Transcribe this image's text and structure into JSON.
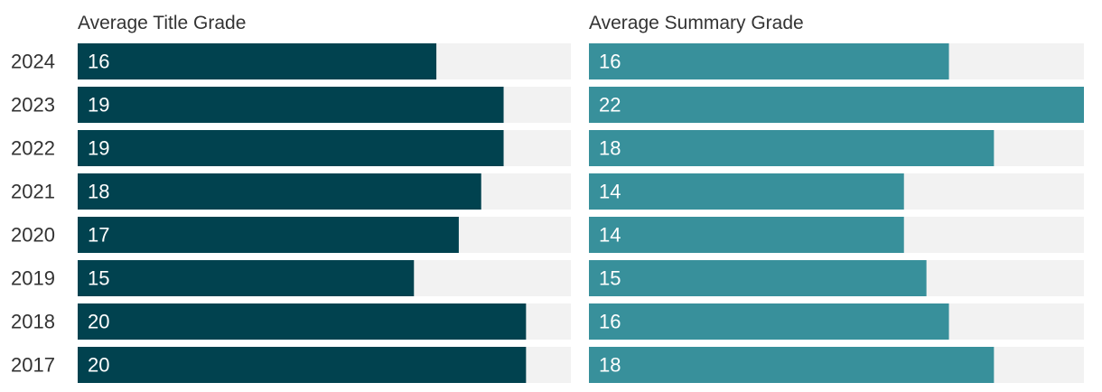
{
  "chart_data": {
    "type": "bar",
    "orientation": "horizontal",
    "categories": [
      "2024",
      "2023",
      "2022",
      "2021",
      "2020",
      "2019",
      "2018",
      "2017"
    ],
    "xlim": [
      0,
      22
    ],
    "grid": false,
    "series": [
      {
        "name": "Average Title Grade",
        "color": "#01424f",
        "values": [
          16,
          19,
          19,
          18,
          17,
          15,
          20,
          20
        ]
      },
      {
        "name": "Average Summary Grade",
        "color": "#38909b",
        "values": [
          16,
          22,
          18,
          14,
          14,
          15,
          16,
          18
        ]
      }
    ],
    "track_color": "#f2f2f2"
  }
}
